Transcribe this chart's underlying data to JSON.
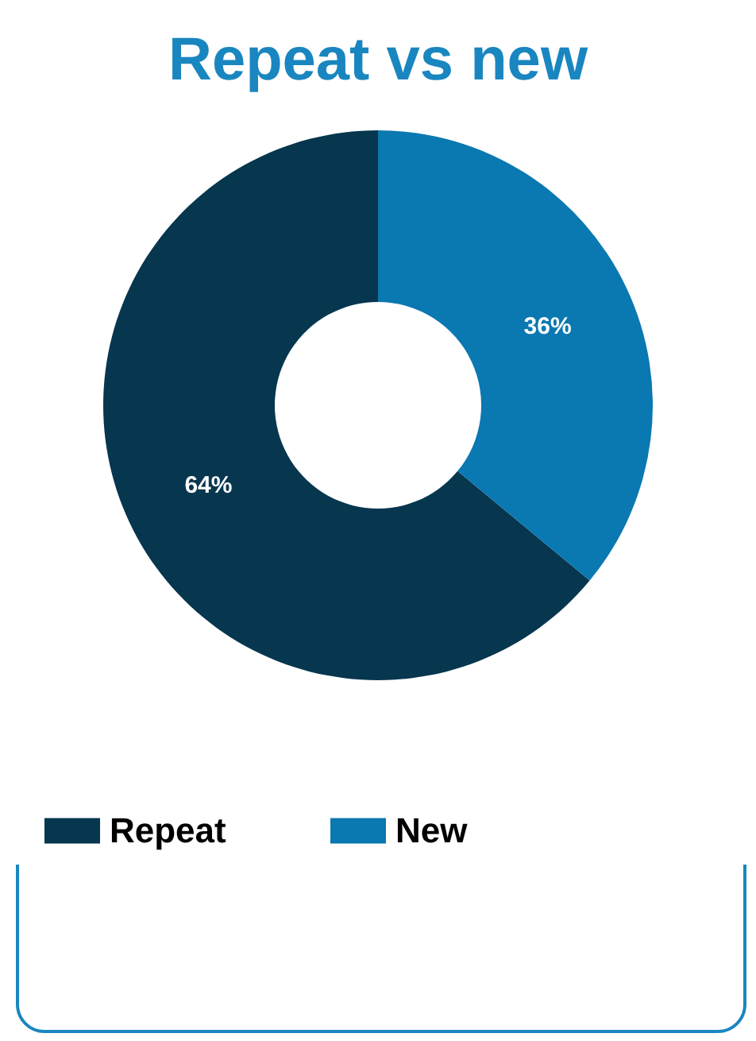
{
  "chart_data": {
    "type": "donut",
    "title": "Repeat vs new",
    "categories": [
      "Repeat",
      "New"
    ],
    "values": [
      64,
      36
    ],
    "colors": [
      "#07364f",
      "#0a78b1"
    ],
    "value_labels": [
      "64%",
      "36%"
    ],
    "legend": "bottom"
  }
}
